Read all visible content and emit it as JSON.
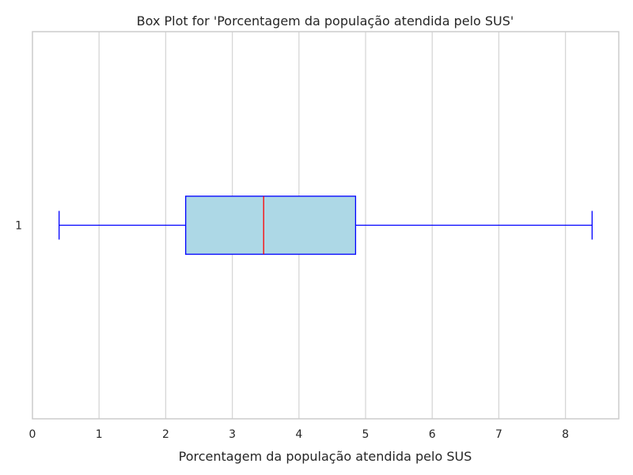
{
  "chart_data": {
    "type": "box",
    "title": "Box Plot for 'Porcentagem da população atendida pelo SUS'",
    "xlabel": "Porcentagem da população atendida pelo SUS",
    "ylabel": "",
    "orientation": "horizontal",
    "xlim": [
      0,
      8.8
    ],
    "xticks": [
      0,
      1,
      2,
      3,
      4,
      5,
      6,
      7,
      8
    ],
    "yticks": [
      "1"
    ],
    "grid": true,
    "series": [
      {
        "category": "1",
        "whisker_low": 0.4,
        "q1": 2.3,
        "median": 3.47,
        "q3": 4.85,
        "whisker_high": 8.4
      }
    ],
    "colors": {
      "box_fill": "#add8e6",
      "box_edge": "#0000ff",
      "median": "#ff0000",
      "whisker": "#0000ff"
    }
  }
}
